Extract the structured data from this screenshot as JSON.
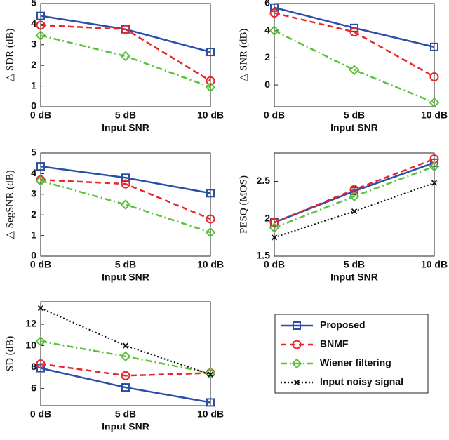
{
  "chart_data": [
    {
      "type": "line",
      "y_label": "△ SDR (dB)",
      "x_label": "Input SNR",
      "categories": [
        "0 dB",
        "5 dB",
        "10 dB"
      ],
      "ylim": [
        0,
        5
      ],
      "yticks": [
        0,
        1,
        2,
        3,
        4,
        5
      ],
      "series": [
        {
          "name": "Proposed",
          "color": "#2a4fa8",
          "marker": "square",
          "style": "solid",
          "values": [
            4.4,
            3.75,
            2.65
          ]
        },
        {
          "name": "BNMF",
          "color": "#e8262a",
          "marker": "circle",
          "style": "dashed",
          "values": [
            3.95,
            3.75,
            1.25
          ]
        },
        {
          "name": "Wiener filtering",
          "color": "#5cc23c",
          "marker": "diamond",
          "style": "dashdot",
          "values": [
            3.45,
            2.45,
            0.95
          ]
        }
      ]
    },
    {
      "type": "line",
      "y_label": "△ SNR (dB)",
      "x_label": "Input SNR",
      "categories": [
        "0 dB",
        "5 dB",
        "10 dB"
      ],
      "ylim": [
        -1.6,
        6
      ],
      "yticks": [
        0,
        2,
        4,
        6
      ],
      "series": [
        {
          "name": "Proposed",
          "color": "#2a4fa8",
          "marker": "square",
          "style": "solid",
          "values": [
            5.7,
            4.2,
            2.8
          ]
        },
        {
          "name": "BNMF",
          "color": "#e8262a",
          "marker": "circle",
          "style": "dashed",
          "values": [
            5.3,
            3.9,
            0.6
          ]
        },
        {
          "name": "Wiener filtering",
          "color": "#5cc23c",
          "marker": "diamond",
          "style": "dashdot",
          "values": [
            4.0,
            1.1,
            -1.3
          ]
        }
      ]
    },
    {
      "type": "line",
      "y_label": "△ SegSNR (dB)",
      "x_label": "Input SNR",
      "categories": [
        "0 dB",
        "5 dB",
        "10 dB"
      ],
      "ylim": [
        0,
        5
      ],
      "yticks": [
        0,
        1,
        2,
        3,
        4,
        5
      ],
      "series": [
        {
          "name": "Proposed",
          "color": "#2a4fa8",
          "marker": "square",
          "style": "solid",
          "values": [
            4.35,
            3.8,
            3.05
          ]
        },
        {
          "name": "BNMF",
          "color": "#e8262a",
          "marker": "circle",
          "style": "dashed",
          "values": [
            3.7,
            3.5,
            1.8
          ]
        },
        {
          "name": "Wiener filtering",
          "color": "#5cc23c",
          "marker": "diamond",
          "style": "dashdot",
          "values": [
            3.65,
            2.5,
            1.15
          ]
        }
      ]
    },
    {
      "type": "line",
      "y_label": "PESQ (MOS)",
      "x_label": "Input SNR",
      "categories": [
        "0 dB",
        "5 dB",
        "10 dB"
      ],
      "ylim": [
        1.5,
        2.88
      ],
      "yticks": [
        1.5,
        2,
        2.5
      ],
      "series": [
        {
          "name": "Proposed",
          "color": "#2a4fa8",
          "marker": "square",
          "style": "solid",
          "values": [
            1.95,
            2.37,
            2.75
          ]
        },
        {
          "name": "BNMF",
          "color": "#e8262a",
          "marker": "circle",
          "style": "dashed",
          "values": [
            1.95,
            2.39,
            2.8
          ]
        },
        {
          "name": "Wiener filtering",
          "color": "#5cc23c",
          "marker": "diamond",
          "style": "dashdot",
          "values": [
            1.88,
            2.3,
            2.7
          ]
        },
        {
          "name": "Input noisy signal",
          "color": "#111111",
          "marker": "x",
          "style": "dotted",
          "values": [
            1.75,
            2.1,
            2.48
          ]
        }
      ]
    },
    {
      "type": "line",
      "y_label": "SD (dB)",
      "x_label": "Input SNR",
      "categories": [
        "0 dB",
        "5 dB",
        "10 dB"
      ],
      "ylim": [
        4.4,
        14.1
      ],
      "yticks": [
        6,
        8,
        10,
        12
      ],
      "series": [
        {
          "name": "Proposed",
          "color": "#2a4fa8",
          "marker": "square",
          "style": "solid",
          "values": [
            7.9,
            6.1,
            4.7
          ]
        },
        {
          "name": "BNMF",
          "color": "#e8262a",
          "marker": "circle",
          "style": "dashed",
          "values": [
            8.3,
            7.2,
            7.45
          ]
        },
        {
          "name": "Wiener filtering",
          "color": "#5cc23c",
          "marker": "diamond",
          "style": "dashdot",
          "values": [
            10.4,
            9.0,
            7.45
          ]
        },
        {
          "name": "Input noisy signal",
          "color": "#111111",
          "marker": "x",
          "style": "dotted",
          "values": [
            13.5,
            10.0,
            7.3
          ]
        }
      ]
    }
  ]
}
